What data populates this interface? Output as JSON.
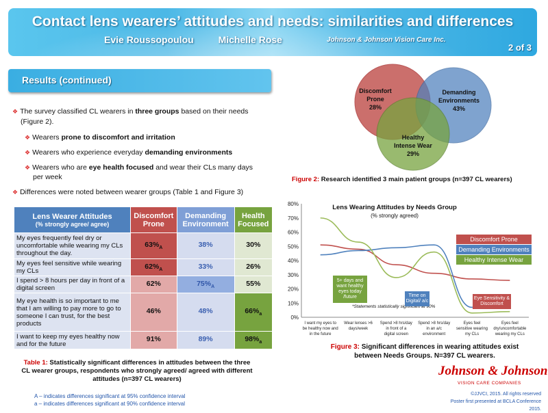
{
  "header": {
    "title": "Contact lens wearers’ attitudes and needs: similarities and differences",
    "author1": "Evie Roussopoulou",
    "author2": "Michelle Rose",
    "affiliation": "Johnson & Johnson Vision Care Inc.",
    "page": "2 of 3"
  },
  "section_title": "Results (continued)",
  "bullets": {
    "b1a": "The survey classified CL wearers in ",
    "b1b": "three groups",
    "b1c": " based on their needs",
    "b1d": "(Figure 2).",
    "s1a": "Wearers ",
    "s1b": "prone to discomfort and irritation",
    "s2a": "Wearers who experience everyday ",
    "s2b": "demanding environments",
    "s3a": "Wearers who are ",
    "s3b": "eye health focused",
    "s3c": " and wear their CLs many days",
    "s3d": "per week",
    "b2": "Differences were noted between wearer groups (Table 1 and Figure 3)"
  },
  "table": {
    "h0a": "Lens Wearer Attitudes",
    "h0b": "(% strongly agree/ agree)",
    "h1": "Discomfort Prone",
    "h2": "Demanding Environment",
    "h3": "Health Focused",
    "rows": [
      {
        "s": "My eyes frequently feel dry or uncomfortable while wearing my CLs throughout the day.",
        "a": "63%",
        "as": "A",
        "b": "38%",
        "bs": "",
        "c": "30%",
        "cs": ""
      },
      {
        "s": "My eyes feel sensitive while wearing my CLs",
        "a": "62%",
        "as": "A",
        "b": "33%",
        "bs": "",
        "c": "26%",
        "cs": ""
      },
      {
        "s": "I spend > 8 hours per day in front of a digital screen",
        "a": "62%",
        "as": "",
        "b": "75%",
        "bs": "A",
        "c": "55%",
        "cs": ""
      },
      {
        "s": "My eye health is so important to me that I am willing to pay more to go to someone I can trust, for the best products",
        "a": "46%",
        "as": "",
        "b": "48%",
        "bs": "",
        "c": "66%",
        "cs": "a"
      },
      {
        "s": "I want to keep my eyes healthy now and for the future",
        "a": "91%",
        "as": "",
        "b": "89%",
        "bs": "",
        "c": "98%",
        "cs": "a"
      }
    ],
    "caption_label": "Table 1:",
    "caption": " Statistically significant differences in attitudes between the three CL wearer groups, respondents who strongly agreed/ agreed with different attitudes (n=397 CL wearers)",
    "note1": "A – indicates differences significant at 95% confidence interval",
    "note2": "a – indicates differences significant at 90% confidence interval"
  },
  "venn": {
    "c1": "Discomfort Prone",
    "c1v": "28%",
    "c2": "Demanding Environments",
    "c2v": "43%",
    "c3": "Healthy Intense Wear",
    "c3v": "29%",
    "caption_label": "Figure 2:",
    "caption": " Research identified 3 main patient groups (n=397 CL wearers)"
  },
  "chart_data": {
    "type": "line",
    "title": "Lens Wearing Attitudes by Needs Group",
    "subtitle": "(% strongly agreed)",
    "ylim": [
      0,
      80
    ],
    "yticks": [
      "0%",
      "10%",
      "20%",
      "30%",
      "40%",
      "50%",
      "60%",
      "70%",
      "80%"
    ],
    "categories": [
      "I want my eyes to be healthy now and in the future",
      "Wear lenses >6 days/week",
      "Spend >8 hrs/day in front of a digital screen",
      "Spend >8 hrs/day in an a/c environment",
      "Eyes feel sensitive wearing my CLs",
      "Eyes feel dry/uncomfortable wearing my CLs"
    ],
    "series": [
      {
        "name": "Discomfort Prone",
        "color": "#c0504d",
        "values": [
          51,
          48,
          37,
          31,
          27,
          26
        ]
      },
      {
        "name": "Demanding Environments",
        "color": "#4f81bd",
        "values": [
          44,
          47,
          49,
          51,
          7,
          10
        ]
      },
      {
        "name": "Healthy Intense Wear",
        "color": "#9bbb59",
        "values": [
          70,
          53,
          28,
          46,
          3,
          4
        ]
      }
    ],
    "annotations": {
      "a1": "5+ days and want healthy eyes today /future",
      "a2": "Time on Digital/ a/c",
      "a3": "Eye Sensitivity & Discomfort",
      "footnote": "*Statements statistically significant at 90%"
    },
    "caption_label": "Figure 3:",
    "caption": " Significant differences in wearing attitudes exist between Needs Groups. N=397 CL wearers."
  },
  "footer": {
    "logo": "Johnson & Johnson",
    "sublogo": "VISION CARE COMPANIES",
    "copyright": "©JJVCI, 2015. All rights reserved",
    "presented": "Poster first presented at BCLA Conference 2015."
  }
}
